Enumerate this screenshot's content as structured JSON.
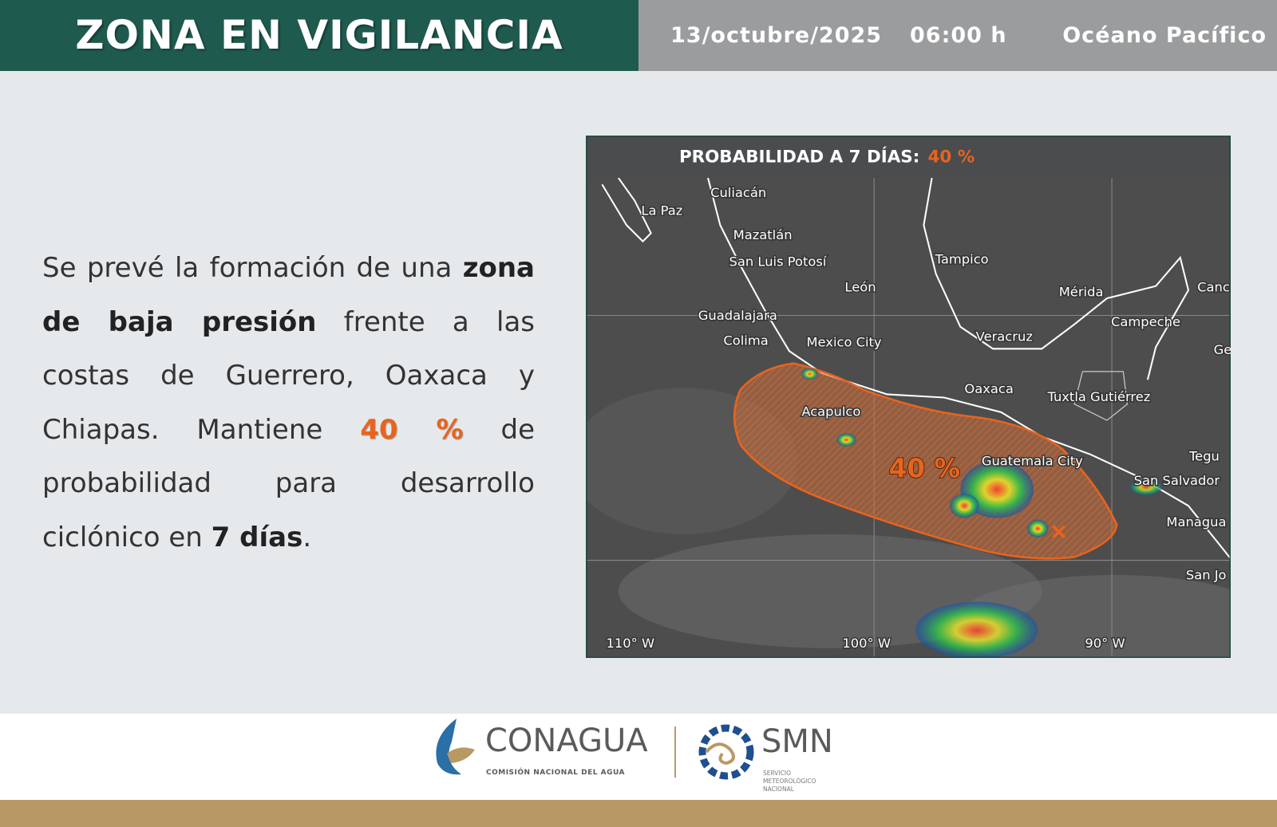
{
  "header": {
    "title": "ZONA EN VIGILANCIA",
    "date": "13/octubre/2025",
    "time": "06:00 h",
    "region": "Océano Pacífico"
  },
  "body": {
    "segments": [
      "Se prevé la formación de una ",
      "zona de baja presión",
      " frente a las costas de Guerrero, Oaxaca y Chiapas. Mantiene ",
      "40 %",
      " de probabilidad para desarrollo ciclónico en ",
      "7 días",
      "."
    ]
  },
  "map": {
    "title": "PROBABILIDAD A 7 DÍAS:",
    "probability": "40 %",
    "area_label": "40 %",
    "cities": [
      "Culiacán",
      "La Paz",
      "Mazatlán",
      "San Luis Potosí",
      "León",
      "Tampico",
      "Mérida",
      "Canc",
      "Guadalajara",
      "Colima",
      "Mexico City",
      "Veracruz",
      "Campeche",
      "Ge",
      "Oaxaca",
      "Tuxtla Gutiérrez",
      "Acapulco",
      "Guatemala City",
      "Tegu",
      "San Salvador",
      "Managua",
      "San Jo"
    ],
    "longitudes": [
      "110° W",
      "100° W",
      "90° W"
    ]
  },
  "footer": {
    "conagua": "CONAGUA",
    "conagua_sub": "COMISIÓN NACIONAL DEL AGUA",
    "smn": "SMN",
    "smn_sub": [
      "SERVICIO",
      "METEOROLÓGICO",
      "NACIONAL"
    ]
  }
}
